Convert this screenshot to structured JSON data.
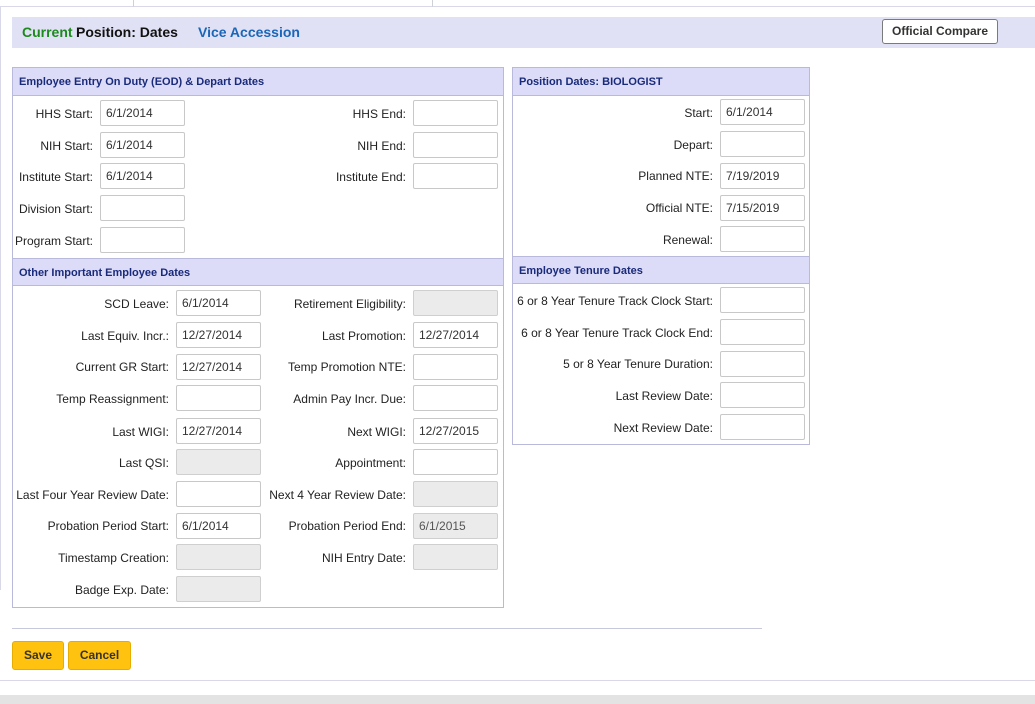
{
  "header": {
    "current": "Current",
    "position_dates": "Position: Dates",
    "vice_accession": "Vice Accession",
    "official_compare": "Official Compare"
  },
  "eod": {
    "title": "Employee Entry On Duty (EOD) & Depart Dates",
    "hhs_start_label": "HHS Start:",
    "hhs_start": "6/1/2014",
    "hhs_end_label": "HHS End:",
    "hhs_end": "",
    "nih_start_label": "NIH Start:",
    "nih_start": "6/1/2014",
    "nih_end_label": "NIH End:",
    "nih_end": "",
    "institute_start_label": "Institute Start:",
    "institute_start": "6/1/2014",
    "institute_end_label": "Institute End:",
    "institute_end": "",
    "division_start_label": "Division Start:",
    "division_start": "",
    "program_start_label": "Program Start:",
    "program_start": ""
  },
  "other": {
    "title": "Other Important Employee Dates",
    "scd_leave_label": "SCD Leave:",
    "scd_leave": "6/1/2014",
    "retirement_label": "Retirement Eligibility:",
    "retirement": "",
    "last_equiv_label": "Last Equiv. Incr.:",
    "last_equiv": "12/27/2014",
    "last_promotion_label": "Last Promotion:",
    "last_promotion": "12/27/2014",
    "current_gr_label": "Current GR Start:",
    "current_gr": "12/27/2014",
    "temp_promo_label": "Temp Promotion NTE:",
    "temp_promo": "",
    "temp_reassign_label": "Temp Reassignment:",
    "temp_reassign": "",
    "admin_pay_label": "Admin Pay Incr. Due:",
    "admin_pay": "",
    "last_wigi_label": "Last WIGI:",
    "last_wigi": "12/27/2014",
    "next_wigi_label": "Next WIGI:",
    "next_wigi": "12/27/2015",
    "last_qsi_label": "Last QSI:",
    "last_qsi": "",
    "appointment_label": "Appointment:",
    "appointment": "",
    "last_four_label": "Last Four Year Review Date:",
    "last_four": "",
    "next_four_label": "Next 4 Year Review Date:",
    "next_four": "",
    "prob_start_label": "Probation Period Start:",
    "prob_start": "6/1/2014",
    "prob_end_label": "Probation Period End:",
    "prob_end": "6/1/2015",
    "timestamp_label": "Timestamp Creation:",
    "timestamp": "",
    "nih_entry_label": "NIH Entry Date:",
    "nih_entry": "",
    "badge_label": "Badge Exp. Date:",
    "badge": ""
  },
  "position": {
    "title": "Position Dates: BIOLOGIST",
    "start_label": "Start:",
    "start": "6/1/2014",
    "depart_label": "Depart:",
    "depart": "",
    "planned_nte_label": "Planned NTE:",
    "planned_nte": "7/19/2019",
    "official_nte_label": "Official NTE:",
    "official_nte": "7/15/2019",
    "renewal_label": "Renewal:",
    "renewal": ""
  },
  "tenure": {
    "title": "Employee Tenure Dates",
    "clock_start_label": "6 or 8 Year Tenure Track Clock Start:",
    "clock_start": "",
    "clock_end_label": "6 or 8 Year Tenure Track Clock End:",
    "clock_end": "",
    "duration_label": "5 or 8 Year Tenure Duration:",
    "duration": "",
    "last_review_label": "Last Review Date:",
    "last_review": "",
    "next_review_label": "Next Review Date:",
    "next_review": ""
  },
  "actions": {
    "save": "Save",
    "cancel": "Cancel"
  },
  "colors": {
    "header_bg": "#e1e1f5",
    "panel_header_bg": "#dcdcf8",
    "accent_green": "#1c8a1c",
    "link_blue": "#1a66b8",
    "button_yellow": "#ffc20e"
  }
}
